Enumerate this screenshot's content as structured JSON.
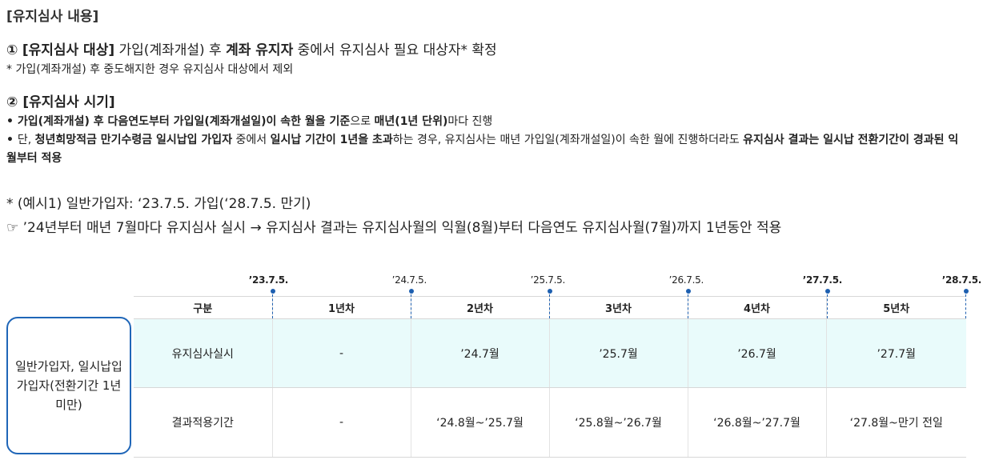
{
  "section_title": "[유지심사 내용]",
  "item1": {
    "num": "①",
    "bracket_label": "[유지심사 대상]",
    "t1": " 가입(계좌개설) 후 ",
    "b1": "계좌 유지자",
    "t2": " 중에서 유지심사 필요 대상자* 확정",
    "note": "* 가입(계좌개설) 후 중도해지한 경우 유지심사 대상에서 제외"
  },
  "item2": {
    "num": "②",
    "bracket_label": "[유지심사 시기]",
    "bullet1": {
      "dot": "• ",
      "b1": "가입(계좌개설) 후 다음연도부터 가입일(계좌개설일)이 속한 월을 기준",
      "t1": "으로 ",
      "b2": "매년(1년 단위)",
      "t2": "마다 진행"
    },
    "bullet2": {
      "dot": "• ",
      "t1": "단, ",
      "b1": "청년희망적금 만기수령금 일시납입 가입자",
      "t2": " 중에서 ",
      "b2": "일시납 기간이 1년을 초과",
      "t3": "하는 경우, 유지심사는 매년 가입일(계좌개설일)이 속한 월에 진행하더라도 ",
      "b3": "유지심사 결과는 일시납 전환기간이 경과된 익월부터 적용"
    }
  },
  "example": {
    "line1": "* (예시1) 일반가입자: ‘23.7.5. 가입(‘28.7.5. 만기)",
    "line2": "☞ ’24년부터 매년 7월마다 유지심사 실시 → 유지심사 결과는 유지심사월의 익월(8월)부터 다음연도 유지심사월(7월)까지 1년동안 적용"
  },
  "timeline": {
    "dates": [
      "’23.7.5.",
      "’24.7.5.",
      "’25.7.5.",
      "’26.7.5.",
      "’27.7.5.",
      "’28.7.5."
    ]
  },
  "table": {
    "headers": [
      "구분",
      "1년차",
      "2년차",
      "3년차",
      "4년차",
      "5년차"
    ],
    "rows": [
      [
        "유지심사실시",
        "-",
        "’24.7월",
        "’25.7월",
        "’26.7월",
        "’27.7월"
      ],
      [
        "결과적용기간",
        "-",
        "‘24.8월~’25.7월",
        "‘25.8월~’26.7월",
        "‘26.8월~’27.7월",
        "‘27.8월~만기 전일"
      ]
    ]
  },
  "group_label": "일반가입자, 일시납입 가입자(전환기간 1년 미만)",
  "colors": {
    "accent_blue": "#1f66b8",
    "row_highlight": "#e9fbfb"
  }
}
